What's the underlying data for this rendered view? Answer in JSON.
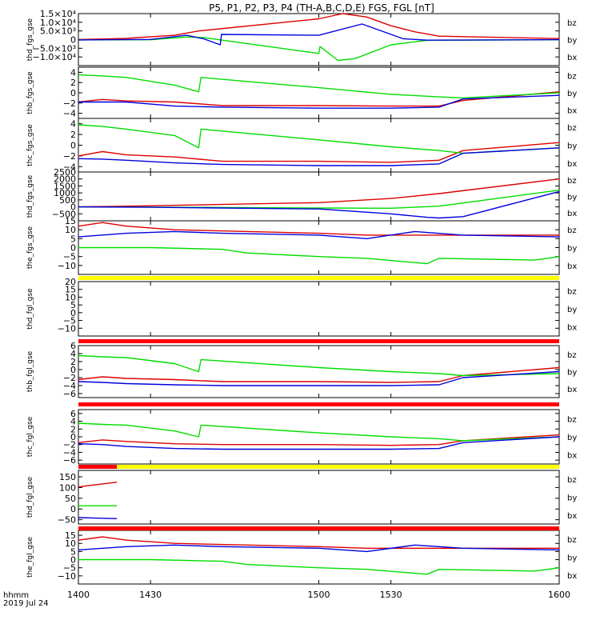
{
  "title": "P5, P1, P2, P3, P4 (TH-A,B,C,D,E) FGS, FGL [nT]",
  "footer": {
    "line1": "hhmm",
    "line2": "2019 Jul 24"
  },
  "colors": {
    "bz": "#dd0000",
    "by": "#00dd00",
    "bx": "#0000dd",
    "flag_red": "#ff0000",
    "flag_yellow": "#ffff00"
  },
  "chart_data": [
    {
      "type": "line",
      "ylabel": "thd_fgs_gse",
      "ylim": [
        -15000,
        15000
      ],
      "yticks": [
        -10000,
        -5000,
        0,
        5000,
        10000,
        15000
      ],
      "ytick_labels": [
        "−1.0×10⁴",
        "−5.0×10³",
        "0",
        "5.0×10³",
        "1.0×10⁴",
        "1.5×10⁴"
      ],
      "series": [
        {
          "name": "bz",
          "x": [
            1400,
            1420,
            1440,
            1450,
            1500,
            1510,
            1520,
            1530,
            1540,
            1550,
            1600
          ],
          "y": [
            0,
            700,
            2500,
            5000,
            12000,
            15000,
            13000,
            8000,
            4500,
            2000,
            600
          ]
        },
        {
          "name": "by",
          "x": [
            1400,
            1430,
            1445,
            1452,
            1500,
            1500.5,
            1508,
            1515,
            1530,
            1545,
            1600
          ],
          "y": [
            -200,
            -100,
            1500,
            1200,
            -8000,
            -4000,
            -12000,
            -11000,
            -3000,
            -400,
            -100
          ]
        },
        {
          "name": "bx",
          "x": [
            1400,
            1430,
            1445,
            1452,
            1459,
            1459.5,
            1500,
            1518,
            1535,
            1545,
            1600
          ],
          "y": [
            -200,
            100,
            2500,
            500,
            -3000,
            3000,
            2500,
            9000,
            500,
            -300,
            -50
          ]
        }
      ]
    },
    {
      "type": "line",
      "ylabel": "thb_fgs_gse",
      "ylim": [
        -5,
        5
      ],
      "yticks": [
        -4,
        -2,
        0,
        2,
        4
      ],
      "ytick_labels": [
        "−4",
        "−2",
        "0",
        "2",
        "4"
      ],
      "series": [
        {
          "name": "bz",
          "x": [
            1400,
            1410,
            1420,
            1440,
            1460,
            1500,
            1530,
            1550,
            1560,
            1600
          ],
          "y": [
            -1.8,
            -1.3,
            -1.6,
            -1.8,
            -2.5,
            -2.5,
            -2.6,
            -2.6,
            -1.5,
            0.2
          ]
        },
        {
          "name": "by",
          "x": [
            1400,
            1410,
            1420,
            1440,
            1450,
            1451,
            1500,
            1530,
            1550,
            1560,
            1600
          ],
          "y": [
            3.5,
            3.3,
            3.0,
            1.5,
            0.2,
            3.0,
            1.0,
            -0.3,
            -0.8,
            -1.0,
            0.0
          ]
        },
        {
          "name": "bx",
          "x": [
            1400,
            1410,
            1420,
            1440,
            1460,
            1500,
            1530,
            1550,
            1560,
            1600
          ],
          "y": [
            -1.8,
            -1.8,
            -1.8,
            -2.6,
            -2.8,
            -3.0,
            -3.0,
            -2.8,
            -1.2,
            -0.5
          ]
        }
      ]
    },
    {
      "type": "line",
      "ylabel": "thc_fgs_gse",
      "ylim": [
        -5,
        5
      ],
      "yticks": [
        -4,
        -2,
        0,
        2,
        4
      ],
      "ytick_labels": [
        "−4",
        "−2",
        "0",
        "2",
        "4"
      ],
      "series": [
        {
          "name": "bz",
          "x": [
            1400,
            1410,
            1420,
            1440,
            1460,
            1500,
            1530,
            1550,
            1560,
            1600
          ],
          "y": [
            -2.0,
            -1.2,
            -1.8,
            -2.2,
            -3.0,
            -3.0,
            -3.2,
            -2.8,
            -1.0,
            0.5
          ]
        },
        {
          "name": "by",
          "x": [
            1400,
            1410,
            1420,
            1440,
            1450,
            1451,
            1500,
            1530,
            1550,
            1560,
            1600
          ],
          "y": [
            3.8,
            3.5,
            3.0,
            1.8,
            -0.5,
            3.0,
            1.0,
            -0.3,
            -1.0,
            -1.5,
            -0.5
          ]
        },
        {
          "name": "bx",
          "x": [
            1400,
            1410,
            1420,
            1440,
            1460,
            1500,
            1530,
            1550,
            1560,
            1600
          ],
          "y": [
            -2.5,
            -2.6,
            -2.8,
            -3.3,
            -3.6,
            -3.8,
            -3.8,
            -3.5,
            -1.5,
            -0.5
          ]
        }
      ]
    },
    {
      "type": "line",
      "ylabel": "thd_fgs_gse",
      "ylim": [
        -1000,
        2500
      ],
      "yticks": [
        -500,
        0,
        500,
        1000,
        1500,
        2000,
        2500
      ],
      "ytick_labels": [
        "−500",
        "0",
        "500",
        "1000",
        "1500",
        "2000",
        "2500"
      ],
      "series": [
        {
          "name": "bz",
          "x": [
            1400,
            1430,
            1500,
            1530,
            1550,
            1600
          ],
          "y": [
            0,
            80,
            300,
            600,
            950,
            2000
          ]
        },
        {
          "name": "by",
          "x": [
            1400,
            1430,
            1500,
            1530,
            1550,
            1600
          ],
          "y": [
            0,
            -20,
            -80,
            -100,
            50,
            1200
          ]
        },
        {
          "name": "bx",
          "x": [
            1400,
            1430,
            1500,
            1530,
            1545,
            1550,
            1560,
            1600
          ],
          "y": [
            0,
            -30,
            -150,
            -500,
            -750,
            -800,
            -700,
            1100
          ]
        }
      ]
    },
    {
      "type": "line",
      "ylabel": "the_fgs_gse",
      "ylim": [
        -15,
        15
      ],
      "yticks": [
        -10,
        -5,
        0,
        5,
        10,
        15
      ],
      "ytick_labels": [
        "−10",
        "−5",
        "0",
        "5",
        "10",
        "15"
      ],
      "series": [
        {
          "name": "bz",
          "x": [
            1400,
            1410,
            1420,
            1440,
            1500,
            1520,
            1540,
            1600
          ],
          "y": [
            12,
            14,
            12,
            10,
            8,
            7,
            7,
            7
          ]
        },
        {
          "name": "by",
          "x": [
            1400,
            1430,
            1460,
            1470,
            1500,
            1520,
            1545,
            1550,
            1590,
            1600
          ],
          "y": [
            0,
            0,
            -1,
            -3,
            -5,
            -6,
            -9,
            -6,
            -7,
            -5
          ]
        },
        {
          "name": "bx",
          "x": [
            1400,
            1420,
            1440,
            1460,
            1500,
            1520,
            1540,
            1560,
            1600
          ],
          "y": [
            6,
            8,
            9,
            8,
            7,
            5,
            9,
            7,
            6
          ]
        }
      ]
    },
    {
      "type": "line",
      "ylabel": "thd_fgl_gse",
      "ylim": [
        -15,
        20
      ],
      "yticks": [
        -10,
        -5,
        0,
        5,
        10,
        15,
        20
      ],
      "ytick_labels": [
        "−10",
        "−5",
        "0",
        "5",
        "10",
        "15",
        "20"
      ],
      "series": [
        {
          "name": "bz",
          "x": [],
          "y": []
        },
        {
          "name": "by",
          "x": [],
          "y": []
        },
        {
          "name": "bx",
          "x": [],
          "y": []
        }
      ]
    },
    {
      "type": "line",
      "ylabel": "thb_fgl_gse",
      "ylim": [
        -7,
        6
      ],
      "yticks": [
        -6,
        -4,
        -2,
        0,
        2,
        4,
        6
      ],
      "ytick_labels": [
        "−6",
        "−4",
        "−2",
        "0",
        "2",
        "4",
        "6"
      ],
      "series": [
        {
          "name": "bz",
          "x": [
            1400,
            1410,
            1420,
            1440,
            1460,
            1500,
            1530,
            1550,
            1560,
            1600
          ],
          "y": [
            -2.5,
            -1.8,
            -2.2,
            -2.5,
            -3.0,
            -3.0,
            -3.2,
            -3.0,
            -1.5,
            0.5
          ]
        },
        {
          "name": "by",
          "x": [
            1400,
            1410,
            1420,
            1440,
            1450,
            1451,
            1500,
            1530,
            1550,
            1560,
            1600
          ],
          "y": [
            3.5,
            3.2,
            3.0,
            1.5,
            -0.5,
            2.5,
            0.5,
            -0.5,
            -1.0,
            -1.5,
            -1.0
          ]
        },
        {
          "name": "bx",
          "x": [
            1400,
            1410,
            1420,
            1440,
            1460,
            1500,
            1530,
            1550,
            1560,
            1600
          ],
          "y": [
            -3.0,
            -3.2,
            -3.5,
            -3.8,
            -4.0,
            -4.0,
            -4.0,
            -3.8,
            -2.0,
            -0.5
          ]
        }
      ]
    },
    {
      "type": "line",
      "ylabel": "thc_fgl_gse",
      "ylim": [
        -7,
        7
      ],
      "yticks": [
        -6,
        -4,
        -2,
        0,
        2,
        4,
        6
      ],
      "ytick_labels": [
        "−6",
        "−4",
        "−2",
        "0",
        "2",
        "4",
        "6"
      ],
      "series": [
        {
          "name": "bz",
          "x": [
            1400,
            1410,
            1420,
            1440,
            1460,
            1500,
            1530,
            1550,
            1560,
            1600
          ],
          "y": [
            -1.5,
            -0.8,
            -1.2,
            -1.8,
            -2.0,
            -2.0,
            -2.2,
            -2.0,
            -1.0,
            0.5
          ]
        },
        {
          "name": "by",
          "x": [
            1400,
            1410,
            1420,
            1440,
            1450,
            1451,
            1500,
            1530,
            1550,
            1560,
            1600
          ],
          "y": [
            3.5,
            3.2,
            3.0,
            1.5,
            0.0,
            3.0,
            1.0,
            0.0,
            -0.5,
            -1.0,
            0.0
          ]
        },
        {
          "name": "bx",
          "x": [
            1400,
            1410,
            1420,
            1440,
            1460,
            1500,
            1530,
            1550,
            1560,
            1600
          ],
          "y": [
            -1.8,
            -2.0,
            -2.5,
            -3.0,
            -3.2,
            -3.2,
            -3.2,
            -3.0,
            -1.5,
            0.0
          ]
        }
      ]
    },
    {
      "type": "line",
      "ylabel": "thd_fgl_gse",
      "ylim": [
        -70,
        180
      ],
      "yticks": [
        -50,
        0,
        50,
        100,
        150
      ],
      "ytick_labels": [
        "−50",
        "0",
        "50",
        "100",
        "150"
      ],
      "series": [
        {
          "name": "bz",
          "x": [
            1400,
            1416
          ],
          "y": [
            103,
            125
          ]
        },
        {
          "name": "by",
          "x": [
            1400,
            1416
          ],
          "y": [
            15,
            15
          ]
        },
        {
          "name": "bx",
          "x": [
            1400,
            1416
          ],
          "y": [
            -40,
            -45
          ]
        }
      ]
    },
    {
      "type": "line",
      "ylabel": "the_fgl_gse",
      "ylim": [
        -15,
        18
      ],
      "yticks": [
        -10,
        -5,
        0,
        5,
        10,
        15
      ],
      "ytick_labels": [
        "−10",
        "−5",
        "0",
        "5",
        "10",
        "15"
      ],
      "series": [
        {
          "name": "bz",
          "x": [
            1400,
            1410,
            1420,
            1440,
            1500,
            1520,
            1540,
            1600
          ],
          "y": [
            12,
            14,
            12,
            10,
            8,
            7,
            7,
            7
          ]
        },
        {
          "name": "by",
          "x": [
            1400,
            1430,
            1460,
            1470,
            1500,
            1520,
            1545,
            1550,
            1590,
            1600
          ],
          "y": [
            0,
            0,
            -1,
            -3,
            -5,
            -6,
            -9,
            -6,
            -7,
            -5
          ]
        },
        {
          "name": "bx",
          "x": [
            1400,
            1420,
            1440,
            1460,
            1500,
            1520,
            1540,
            1560,
            1600
          ],
          "y": [
            6,
            8,
            9,
            8,
            7,
            5,
            9,
            7,
            6
          ]
        }
      ]
    }
  ],
  "x_axis": {
    "range": [
      1400,
      1600
    ],
    "ticks": [
      1400,
      1430,
      1500,
      1530,
      1600
    ],
    "tick_labels": [
      "1400",
      "1430",
      "1500",
      "1530",
      "1600"
    ]
  },
  "flag_bars": [
    {
      "segments": [
        {
          "x0": 1400,
          "x1": 1600,
          "color": "yellow"
        }
      ]
    },
    {
      "segments": [
        {
          "x0": 1400,
          "x1": 1600,
          "color": "red"
        }
      ]
    },
    {
      "segments": [
        {
          "x0": 1400,
          "x1": 1600,
          "color": "red"
        }
      ]
    },
    {
      "segments": [
        {
          "x0": 1400,
          "x1": 1416,
          "color": "red"
        },
        {
          "x0": 1416,
          "x1": 1600,
          "color": "yellow"
        }
      ]
    },
    {
      "segments": [
        {
          "x0": 1400,
          "x1": 1600,
          "color": "red"
        }
      ]
    }
  ]
}
